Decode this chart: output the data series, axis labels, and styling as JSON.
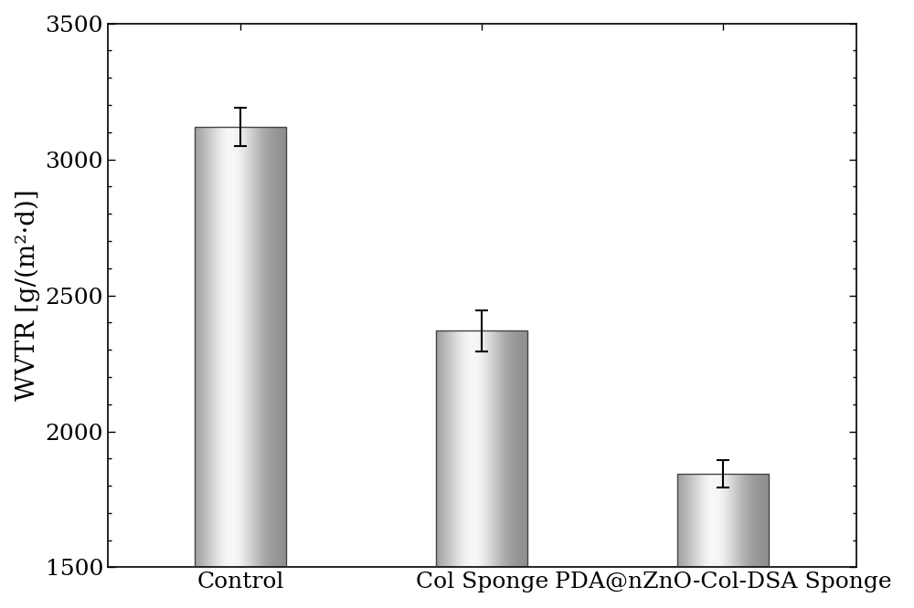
{
  "categories": [
    "Control",
    "Col Sponge",
    "PDA@nZnO-Col-DSA Sponge"
  ],
  "values": [
    3120,
    2370,
    1845
  ],
  "errors": [
    70,
    75,
    50
  ],
  "ylabel": "WVTR [g/(m²·d)]",
  "ylim": [
    1500,
    3500
  ],
  "yticks": [
    1500,
    2000,
    2500,
    3000,
    3500
  ],
  "bar_width": 0.38,
  "figsize": [
    10.0,
    6.66
  ],
  "dpi": 100,
  "background_color": "#ffffff",
  "error_color": "#000000",
  "error_capsize": 5,
  "error_linewidth": 1.5,
  "tick_fontsize": 18,
  "label_fontsize": 20,
  "font_family": "Times New Roman"
}
